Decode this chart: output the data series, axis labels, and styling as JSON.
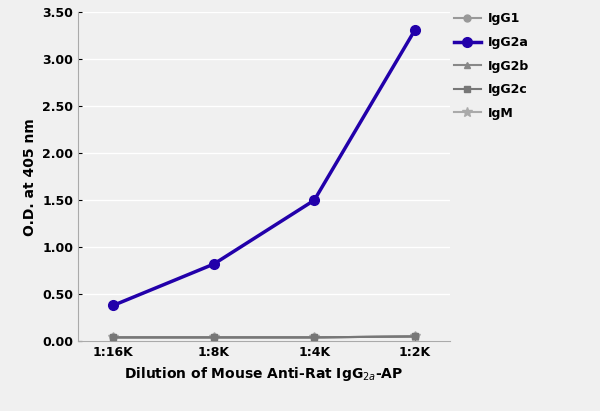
{
  "x_labels": [
    "1:16K",
    "1:8K",
    "1:4K",
    "1:2K"
  ],
  "x_positions": [
    0,
    1,
    2,
    3
  ],
  "series": {
    "IgG1": {
      "values": [
        0.04,
        0.04,
        0.04,
        0.05
      ],
      "color": "#999999",
      "marker": "o",
      "linewidth": 1.5,
      "markersize": 5,
      "zorder": 2
    },
    "IgG2a": {
      "values": [
        0.38,
        0.82,
        1.5,
        3.31
      ],
      "color": "#2200aa",
      "marker": "o",
      "linewidth": 2.5,
      "markersize": 7,
      "zorder": 5
    },
    "IgG2b": {
      "values": [
        0.04,
        0.04,
        0.04,
        0.05
      ],
      "color": "#888888",
      "marker": "^",
      "linewidth": 1.5,
      "markersize": 5,
      "zorder": 3
    },
    "IgG2c": {
      "values": [
        0.04,
        0.04,
        0.04,
        0.05
      ],
      "color": "#777777",
      "marker": "s",
      "linewidth": 1.5,
      "markersize": 5,
      "zorder": 4
    },
    "IgM": {
      "values": [
        0.04,
        0.04,
        0.04,
        0.05
      ],
      "color": "#aaaaaa",
      "marker": "*",
      "linewidth": 1.5,
      "markersize": 7,
      "zorder": 1
    }
  },
  "legend_order": [
    "IgG1",
    "IgG2a",
    "IgG2b",
    "IgG2c",
    "IgM"
  ],
  "legend_labels": {
    "IgG1": "IgG1",
    "IgG2a": "IgG2a",
    "IgG2b": "IgG2b",
    "IgG2c": "IgG2c",
    "IgM": "IgM"
  },
  "xlabel": "Dilution of Mouse Anti-Rat IgG$_{2a}$-AP",
  "ylabel": "O.D. at 405 nm",
  "ylim": [
    0.0,
    3.5
  ],
  "yticks": [
    0.0,
    0.5,
    1.0,
    1.5,
    2.0,
    2.5,
    3.0,
    3.5
  ],
  "ytick_labels": [
    "0.00",
    "0.50",
    "1.00",
    "1.50",
    "2.00",
    "2.50",
    "3.00",
    "3.50"
  ],
  "bg_color": "#f0f0f0",
  "plot_bg_color": "#f0f0f0",
  "grid_color": "#ffffff",
  "axis_label_fontsize": 10,
  "tick_fontsize": 9,
  "legend_fontsize": 9
}
